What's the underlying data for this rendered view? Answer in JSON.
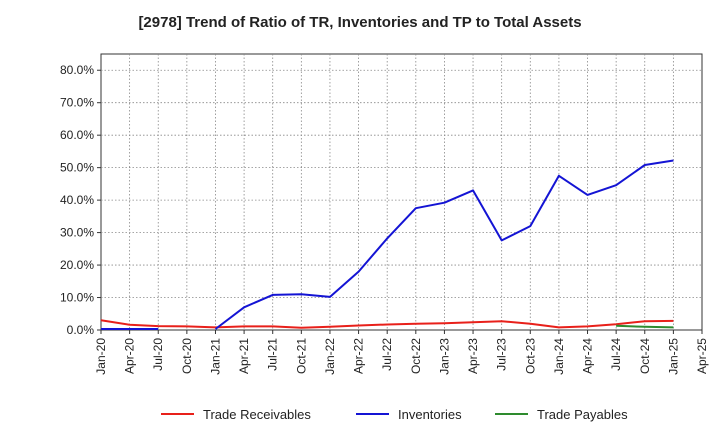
{
  "chart_data": {
    "type": "line",
    "title": "[2978]  Trend of Ratio of TR, Inventories and TP to Total Assets",
    "xlabel": "",
    "ylabel": "",
    "x_ticks": [
      "Jan-20",
      "Apr-20",
      "Jul-20",
      "Oct-20",
      "Jan-21",
      "Apr-21",
      "Jul-21",
      "Oct-21",
      "Jan-22",
      "Apr-22",
      "Jul-22",
      "Oct-22",
      "Jan-23",
      "Apr-23",
      "Jul-23",
      "Oct-23",
      "Jan-24",
      "Apr-24",
      "Jul-24",
      "Oct-24",
      "Jan-25",
      "Apr-25"
    ],
    "y_ticks": [
      "0.0%",
      "10.0%",
      "20.0%",
      "30.0%",
      "40.0%",
      "50.0%",
      "60.0%",
      "70.0%",
      "80.0%"
    ],
    "ylim": [
      0,
      85
    ],
    "grid": true,
    "legend_position": "bottom",
    "series": [
      {
        "name": "Trade Receivables",
        "color": "#e8201a",
        "points": [
          [
            "Jan-20",
            3.0
          ],
          [
            "Apr-20",
            1.6
          ],
          [
            "Jul-20",
            1.2
          ],
          [
            "Oct-20",
            1.1
          ],
          [
            "Jan-21",
            0.8
          ],
          [
            "Apr-21",
            1.1
          ],
          [
            "Jul-21",
            1.1
          ],
          [
            "Oct-21",
            0.7
          ],
          [
            "Jan-22",
            1.0
          ],
          [
            "Apr-22",
            1.4
          ],
          [
            "Jul-22",
            1.7
          ],
          [
            "Oct-22",
            1.9
          ],
          [
            "Jan-23",
            2.1
          ],
          [
            "Apr-23",
            2.4
          ],
          [
            "Jul-23",
            2.7
          ],
          [
            "Oct-23",
            1.9
          ],
          [
            "Jan-24",
            0.8
          ],
          [
            "Apr-24",
            1.1
          ],
          [
            "Jul-24",
            1.8
          ],
          [
            "Oct-24",
            2.7
          ],
          [
            "Jan-25",
            2.8
          ]
        ]
      },
      {
        "name": "Inventories",
        "color": "#1414d4",
        "segments": [
          [
            [
              "Jan-20",
              0.3
            ],
            [
              "Apr-20",
              0.3
            ],
            [
              "Jul-20",
              0.3
            ]
          ],
          [
            [
              "Jan-21",
              0.3
            ],
            [
              "Apr-21",
              7.0
            ],
            [
              "Jul-21",
              10.8
            ],
            [
              "Oct-21",
              11.0
            ],
            [
              "Jan-22",
              10.2
            ],
            [
              "Apr-22",
              18.0
            ],
            [
              "Jul-22",
              28.2
            ],
            [
              "Oct-22",
              37.5
            ],
            [
              "Jan-23",
              39.2
            ],
            [
              "Apr-23",
              43.0
            ],
            [
              "Jul-23",
              27.6
            ],
            [
              "Oct-23",
              32.0
            ],
            [
              "Jan-24",
              47.5
            ],
            [
              "Apr-24",
              41.6
            ],
            [
              "Jul-24",
              44.6
            ],
            [
              "Oct-24",
              50.8
            ],
            [
              "Jan-25",
              52.2
            ]
          ]
        ]
      },
      {
        "name": "Trade Payables",
        "color": "#2e8b2e",
        "points": [
          [
            "Jul-24",
            1.3
          ],
          [
            "Oct-24",
            1.0
          ],
          [
            "Jan-25",
            0.8
          ]
        ]
      }
    ]
  }
}
